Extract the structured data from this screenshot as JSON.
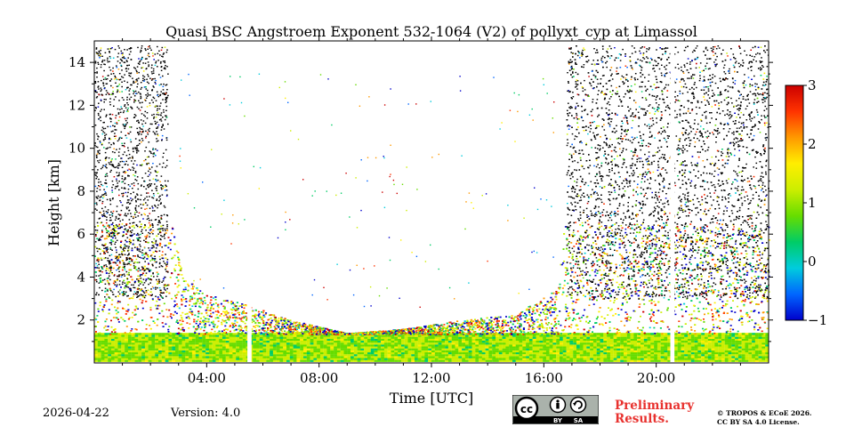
{
  "chart_data": {
    "type": "heatmap",
    "title": "Quasi BSC Angstroem Exponent 532-1064 (V2) of pollyxt_cyp at Limassol",
    "xlabel": "Time [UTC]",
    "ylabel": "Height [km]",
    "x_unit": "hours UTC",
    "xlim": [
      0,
      24
    ],
    "ylim": [
      0,
      15
    ],
    "x_ticks": [
      {
        "value": 4,
        "label": "04:00"
      },
      {
        "value": 8,
        "label": "08:00"
      },
      {
        "value": 12,
        "label": "12:00"
      },
      {
        "value": 16,
        "label": "16:00"
      },
      {
        "value": 20,
        "label": "20:00"
      }
    ],
    "y_ticks": [
      {
        "value": 2,
        "label": "2"
      },
      {
        "value": 4,
        "label": "4"
      },
      {
        "value": 6,
        "label": "6"
      },
      {
        "value": 8,
        "label": "8"
      },
      {
        "value": 10,
        "label": "10"
      },
      {
        "value": 12,
        "label": "12"
      },
      {
        "value": 14,
        "label": "14"
      }
    ],
    "colorbar": {
      "min": -1,
      "max": 3,
      "ticks": [
        {
          "value": 3,
          "label": "3"
        },
        {
          "value": 2,
          "label": "2"
        },
        {
          "value": 1,
          "label": "1"
        },
        {
          "value": 0,
          "label": "0"
        },
        {
          "value": -1,
          "label": "−1"
        }
      ],
      "colors": [
        "#0000cc",
        "#0066ff",
        "#00ccdd",
        "#00cc66",
        "#66dd00",
        "#ccee00",
        "#ffee00",
        "#ff9900",
        "#ff3300",
        "#cc0000"
      ]
    },
    "data_gaps_hours": [
      [
        5.45,
        5.6
      ],
      [
        20.5,
        20.65
      ]
    ],
    "signal_top_km": [
      [
        0,
        15
      ],
      [
        2.6,
        15
      ],
      [
        2.8,
        6
      ],
      [
        3.2,
        4
      ],
      [
        4,
        3.2
      ],
      [
        5.5,
        2.7
      ],
      [
        7,
        2.0
      ],
      [
        9,
        1.4
      ],
      [
        11,
        1.6
      ],
      [
        13,
        2.0
      ],
      [
        15,
        2.3
      ],
      [
        16.5,
        3.5
      ],
      [
        17.2,
        15
      ],
      [
        24,
        15
      ]
    ],
    "noise_columns_hours": [
      [
        0,
        2.6
      ],
      [
        16.8,
        24
      ]
    ]
  },
  "footer": {
    "date": "2026-04-22",
    "version": "Version: 4.0",
    "preliminary_line1": "Preliminary",
    "preliminary_line2": "Results.",
    "copyright_line1": "© TROPOS & ECoE 2026.",
    "copyright_line2": "CC BY SA 4.0 License.",
    "badge_by": "BY",
    "badge_sa": "SA"
  }
}
